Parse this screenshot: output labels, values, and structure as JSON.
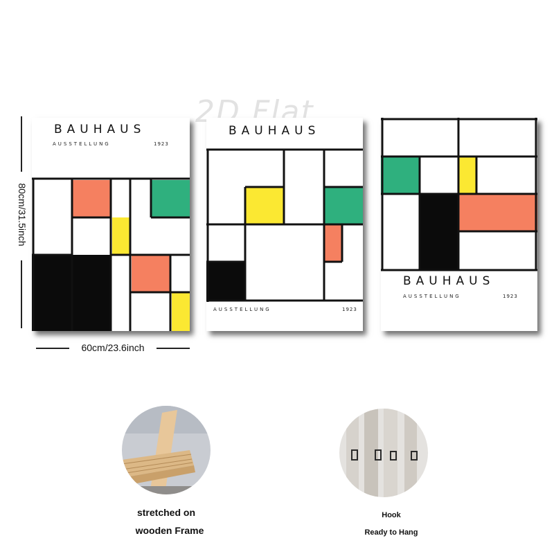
{
  "watermark": "2D Flat",
  "posters": [
    {
      "title": "BAUHAUS",
      "subtitle": "AUSSTELLUNG",
      "year": "1923"
    },
    {
      "title": "BAUHAUS",
      "subtitle": "AUSSTELLUNG",
      "year": "1923"
    },
    {
      "title": "BAUHAUS",
      "subtitle": "AUSSTELLUNG",
      "year": "1923"
    }
  ],
  "dimensions": {
    "height_label": "80cm/31.5inch",
    "width_label": "60cm/23.6inch"
  },
  "features": [
    {
      "caption_line1": "stretched on",
      "caption_line2": "wooden Frame",
      "icon": "wooden-frame-photo"
    },
    {
      "caption_line1": "Hook",
      "caption_line2": "Ready to Hang",
      "icon": "hook-photo"
    }
  ],
  "colors": {
    "orange": "#f58060",
    "yellow": "#fbe832",
    "green": "#2fb07e",
    "black": "#0b0b0b",
    "line": "#111111"
  }
}
